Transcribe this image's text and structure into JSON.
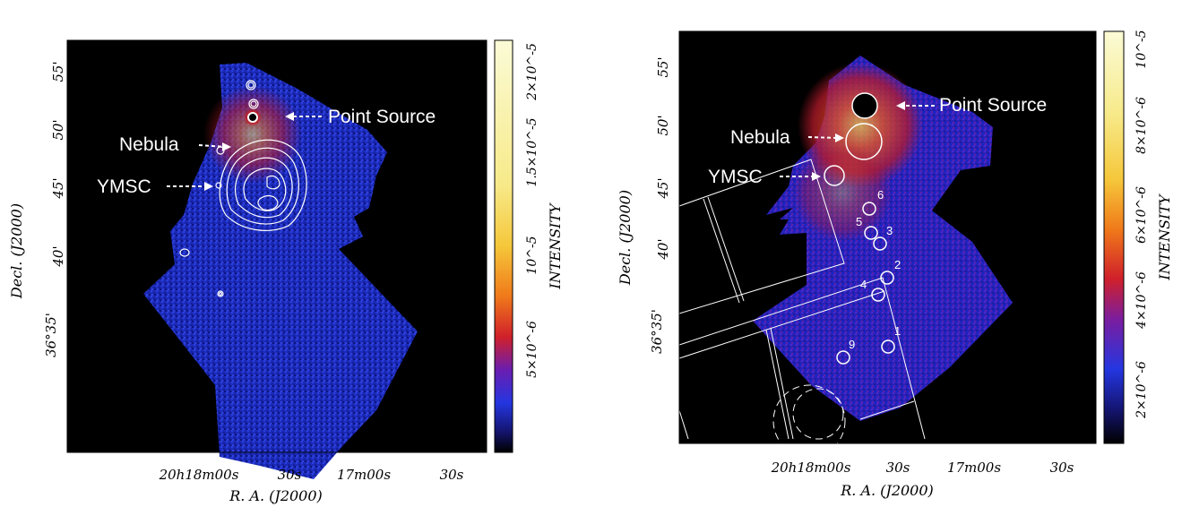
{
  "left_panel": {
    "xlabel": "R. A. (J2000)",
    "ylabel": "Decl. (J2000)",
    "ra_ticks": [
      "20h18m00s",
      "30s",
      "17m00s",
      "30s"
    ],
    "dec_ticks": [
      "55'",
      "50'",
      "45'",
      "40'",
      "36°35'"
    ],
    "annotations": [
      "Point Source",
      "Nebula",
      "YMSC"
    ],
    "colorbar": {
      "label": "INTENSITY",
      "ticks": [
        "2×10^-5",
        "1.5×10^-5",
        "10^-5",
        "5×10^-6"
      ],
      "colors": [
        "#fbfbd0",
        "#f5e27a",
        "#f1b52c",
        "#e8571a",
        "#d8201f",
        "#9a0f6a",
        "#3f10c8",
        "#1c2dd8",
        "#000000"
      ]
    }
  },
  "right_panel": {
    "xlabel": "R. A. (J2000)",
    "ylabel": "Decl. (J2000)",
    "ra_ticks": [
      "20h18m00s",
      "30s",
      "17m00s",
      "30s"
    ],
    "dec_ticks": [
      "55'",
      "50'",
      "45'",
      "40'",
      "36°35'"
    ],
    "annotations": [
      "Point Source",
      "Nebula",
      "YMSC"
    ],
    "source_numbers": [
      "6",
      "5",
      "3",
      "2",
      "4",
      "1",
      "9"
    ],
    "colorbar": {
      "label": "INTENSITY",
      "ticks": [
        "10^-5",
        "8×10^-6",
        "6×10^-6",
        "4×10^-6",
        "2×10^-6"
      ],
      "colors": [
        "#fbfbd0",
        "#f5e27a",
        "#f1b52c",
        "#e8571a",
        "#d8201f",
        "#9a0f6a",
        "#3f10c8",
        "#1c2dd8",
        "#000000"
      ]
    }
  }
}
